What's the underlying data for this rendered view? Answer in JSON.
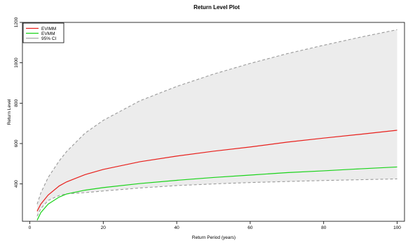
{
  "chart_data": {
    "type": "line",
    "title": "Return Level Plot",
    "xlabel": "Return Period (years)",
    "ylabel": "Return Level",
    "xlim": [
      -2,
      102
    ],
    "ylim": [
      215,
      1200
    ],
    "xticks": [
      0,
      20,
      40,
      60,
      80,
      100
    ],
    "yticks": [
      400,
      600,
      800,
      1000,
      1200
    ],
    "grid": false,
    "legend": "top-left",
    "colors": {
      "EVIMM": "#e8201c",
      "EVMM": "#1ad31a",
      "ci_line": "#999999",
      "ci_fill": "#ececec"
    },
    "series": [
      {
        "name": "EVIMM",
        "style": "solid",
        "x": [
          2,
          3,
          5,
          8,
          10,
          15,
          20,
          30,
          40,
          50,
          60,
          70,
          80,
          90,
          100
        ],
        "y": [
          265,
          300,
          345,
          390,
          410,
          446,
          472,
          510,
          538,
          562,
          583,
          607,
          627,
          646,
          666
        ]
      },
      {
        "name": "EVMM",
        "style": "solid",
        "x": [
          2,
          3,
          5,
          8,
          10,
          15,
          20,
          30,
          40,
          50,
          60,
          70,
          80,
          90,
          100
        ],
        "y": [
          220,
          258,
          300,
          335,
          350,
          369,
          382,
          402,
          418,
          432,
          444,
          456,
          465,
          475,
          484
        ]
      },
      {
        "name": "95% CI",
        "style": "dashed",
        "x": [
          2,
          3,
          5,
          8,
          10,
          15,
          20,
          30,
          40,
          50,
          60,
          70,
          80,
          90,
          100
        ],
        "upper": [
          300,
          355,
          432,
          514,
          560,
          651,
          715,
          812,
          883,
          944,
          997,
          1045,
          1087,
          1127,
          1164
        ],
        "lower": [
          240,
          278,
          318,
          343,
          351,
          357,
          365,
          380,
          392,
          400,
          407,
          412,
          417,
          421,
          425
        ]
      }
    ]
  }
}
